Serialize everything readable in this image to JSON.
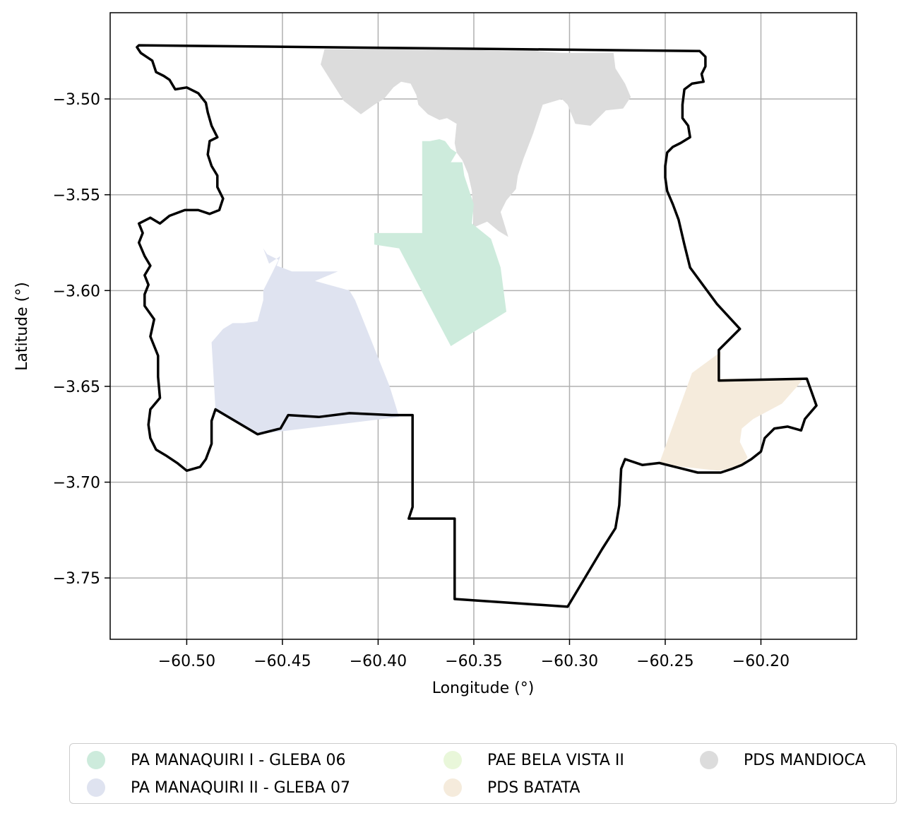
{
  "chart_data": {
    "type": "map",
    "xlabel": "Longitude (°)",
    "ylabel": "Latitude (°)",
    "xlim": [
      -60.54,
      -60.15
    ],
    "ylim": [
      -3.782,
      -3.455
    ],
    "x_ticks": [
      -60.5,
      -60.45,
      -60.4,
      -60.35,
      -60.3,
      -60.25,
      -60.2
    ],
    "x_tick_labels": [
      "−60.50",
      "−60.45",
      "−60.40",
      "−60.35",
      "−60.30",
      "−60.25",
      "−60.20"
    ],
    "y_ticks": [
      -3.5,
      -3.55,
      -3.6,
      -3.65,
      -3.7,
      -3.75
    ],
    "y_tick_labels": [
      "−3.50",
      "−3.55",
      "−3.60",
      "−3.65",
      "−3.70",
      "−3.75"
    ],
    "grid": true,
    "legend_placement": "bottom-center",
    "boundary": {
      "color": "#000000",
      "coords": [
        [
          -60.525,
          -3.472
        ],
        [
          -60.232,
          -3.475
        ],
        [
          -60.229,
          -3.478
        ],
        [
          -60.229,
          -3.483
        ],
        [
          -60.231,
          -3.487
        ],
        [
          -60.23,
          -3.491
        ],
        [
          -60.236,
          -3.492
        ],
        [
          -60.24,
          -3.495
        ],
        [
          -60.241,
          -3.503
        ],
        [
          -60.241,
          -3.51
        ],
        [
          -60.238,
          -3.514
        ],
        [
          -60.237,
          -3.52
        ],
        [
          -60.242,
          -3.523
        ],
        [
          -60.246,
          -3.525
        ],
        [
          -60.249,
          -3.528
        ],
        [
          -60.25,
          -3.535
        ],
        [
          -60.25,
          -3.541
        ],
        [
          -60.249,
          -3.548
        ],
        [
          -60.246,
          -3.555
        ],
        [
          -60.243,
          -3.563
        ],
        [
          -60.24,
          -3.576
        ],
        [
          -60.237,
          -3.588
        ],
        [
          -60.223,
          -3.607
        ],
        [
          -60.211,
          -3.62
        ],
        [
          -60.222,
          -3.631
        ],
        [
          -60.222,
          -3.647
        ],
        [
          -60.176,
          -3.646
        ],
        [
          -60.171,
          -3.66
        ],
        [
          -60.177,
          -3.667
        ],
        [
          -60.179,
          -3.673
        ],
        [
          -60.186,
          -3.671
        ],
        [
          -60.193,
          -3.672
        ],
        [
          -60.198,
          -3.677
        ],
        [
          -60.2,
          -3.684
        ],
        [
          -60.205,
          -3.688
        ],
        [
          -60.21,
          -3.691
        ],
        [
          -60.215,
          -3.693
        ],
        [
          -60.221,
          -3.695
        ],
        [
          -60.233,
          -3.695
        ],
        [
          -60.241,
          -3.693
        ],
        [
          -60.253,
          -3.69
        ],
        [
          -60.262,
          -3.691
        ],
        [
          -60.271,
          -3.688
        ],
        [
          -60.273,
          -3.693
        ],
        [
          -60.274,
          -3.712
        ],
        [
          -60.276,
          -3.724
        ],
        [
          -60.283,
          -3.735
        ],
        [
          -60.301,
          -3.765
        ],
        [
          -60.36,
          -3.761
        ],
        [
          -60.36,
          -3.719
        ],
        [
          -60.384,
          -3.719
        ],
        [
          -60.382,
          -3.713
        ],
        [
          -60.382,
          -3.665
        ],
        [
          -60.393,
          -3.665
        ],
        [
          -60.415,
          -3.664
        ],
        [
          -60.431,
          -3.666
        ],
        [
          -60.447,
          -3.665
        ],
        [
          -60.451,
          -3.672
        ],
        [
          -60.463,
          -3.675
        ],
        [
          -60.485,
          -3.662
        ],
        [
          -60.487,
          -3.668
        ],
        [
          -60.487,
          -3.68
        ],
        [
          -60.49,
          -3.688
        ],
        [
          -60.493,
          -3.692
        ],
        [
          -60.5,
          -3.694
        ],
        [
          -60.505,
          -3.69
        ],
        [
          -60.511,
          -3.686
        ],
        [
          -60.516,
          -3.683
        ],
        [
          -60.519,
          -3.677
        ],
        [
          -60.52,
          -3.67
        ],
        [
          -60.519,
          -3.662
        ],
        [
          -60.514,
          -3.656
        ],
        [
          -60.515,
          -3.645
        ],
        [
          -60.515,
          -3.634
        ],
        [
          -60.519,
          -3.624
        ],
        [
          -60.517,
          -3.615
        ],
        [
          -60.522,
          -3.608
        ],
        [
          -60.522,
          -3.602
        ],
        [
          -60.52,
          -3.597
        ],
        [
          -60.522,
          -3.592
        ],
        [
          -60.519,
          -3.587
        ],
        [
          -60.522,
          -3.582
        ],
        [
          -60.525,
          -3.575
        ],
        [
          -60.523,
          -3.57
        ],
        [
          -60.525,
          -3.565
        ],
        [
          -60.519,
          -3.562
        ],
        [
          -60.514,
          -3.565
        ],
        [
          -60.509,
          -3.561
        ],
        [
          -60.501,
          -3.558
        ],
        [
          -60.494,
          -3.558
        ],
        [
          -60.488,
          -3.56
        ],
        [
          -60.483,
          -3.558
        ],
        [
          -60.481,
          -3.552
        ],
        [
          -60.484,
          -3.546
        ],
        [
          -60.484,
          -3.54
        ],
        [
          -60.487,
          -3.535
        ],
        [
          -60.489,
          -3.529
        ],
        [
          -60.488,
          -3.522
        ],
        [
          -60.484,
          -3.52
        ],
        [
          -60.487,
          -3.514
        ],
        [
          -60.489,
          -3.507
        ],
        [
          -60.49,
          -3.502
        ],
        [
          -60.494,
          -3.497
        ],
        [
          -60.5,
          -3.494
        ],
        [
          -60.506,
          -3.495
        ],
        [
          -60.509,
          -3.49
        ],
        [
          -60.512,
          -3.488
        ],
        [
          -60.516,
          -3.486
        ],
        [
          -60.518,
          -3.48
        ],
        [
          -60.521,
          -3.478
        ],
        [
          -60.524,
          -3.476
        ],
        [
          -60.526,
          -3.473
        ]
      ]
    },
    "areas": [
      {
        "name": "PDS MANDIOCA",
        "color": "#dcdcdc",
        "coords": [
          [
            -60.428,
            -3.474
          ],
          [
            -60.364,
            -3.474
          ],
          [
            -60.359,
            -3.474
          ],
          [
            -60.335,
            -3.475
          ],
          [
            -60.318,
            -3.475
          ],
          [
            -60.304,
            -3.476
          ],
          [
            -60.277,
            -3.476
          ],
          [
            -60.276,
            -3.484
          ],
          [
            -60.271,
            -3.492
          ],
          [
            -60.268,
            -3.499
          ],
          [
            -60.272,
            -3.505
          ],
          [
            -60.281,
            -3.506
          ],
          [
            -60.289,
            -3.514
          ],
          [
            -60.297,
            -3.513
          ],
          [
            -60.301,
            -3.503
          ],
          [
            -60.304,
            -3.5
          ],
          [
            -60.314,
            -3.503
          ],
          [
            -60.319,
            -3.518
          ],
          [
            -60.324,
            -3.531
          ],
          [
            -60.327,
            -3.54
          ],
          [
            -60.328,
            -3.547
          ],
          [
            -60.333,
            -3.553
          ],
          [
            -60.336,
            -3.559
          ],
          [
            -60.332,
            -3.572
          ],
          [
            -60.337,
            -3.569
          ],
          [
            -60.343,
            -3.564
          ],
          [
            -60.35,
            -3.567
          ],
          [
            -60.351,
            -3.548
          ],
          [
            -60.353,
            -3.539
          ],
          [
            -60.356,
            -3.532
          ],
          [
            -60.359,
            -3.528
          ],
          [
            -60.36,
            -3.523
          ],
          [
            -60.359,
            -3.513
          ],
          [
            -60.364,
            -3.51
          ],
          [
            -60.368,
            -3.511
          ],
          [
            -60.374,
            -3.508
          ],
          [
            -60.379,
            -3.503
          ],
          [
            -60.38,
            -3.498
          ],
          [
            -60.383,
            -3.492
          ],
          [
            -60.388,
            -3.491
          ],
          [
            -60.392,
            -3.494
          ],
          [
            -60.397,
            -3.5
          ],
          [
            -60.402,
            -3.503
          ],
          [
            -60.409,
            -3.508
          ],
          [
            -60.418,
            -3.501
          ],
          [
            -60.425,
            -3.49
          ],
          [
            -60.43,
            -3.482
          ]
        ]
      },
      {
        "name": "PA MANAQUIRI I - GLEBA 06",
        "color": "#cdebdc",
        "coords": [
          [
            -60.377,
            -3.522
          ],
          [
            -60.373,
            -3.522
          ],
          [
            -60.368,
            -3.521
          ],
          [
            -60.365,
            -3.522
          ],
          [
            -60.362,
            -3.526
          ],
          [
            -60.359,
            -3.528
          ],
          [
            -60.362,
            -3.533
          ],
          [
            -60.356,
            -3.533
          ],
          [
            -60.355,
            -3.54
          ],
          [
            -60.35,
            -3.555
          ],
          [
            -60.351,
            -3.565
          ],
          [
            -60.341,
            -3.573
          ],
          [
            -60.336,
            -3.588
          ],
          [
            -60.333,
            -3.611
          ],
          [
            -60.362,
            -3.629
          ],
          [
            -60.389,
            -3.578
          ],
          [
            -60.402,
            -3.576
          ],
          [
            -60.402,
            -3.57
          ],
          [
            -60.377,
            -3.57
          ],
          [
            -60.377,
            -3.548
          ]
        ]
      },
      {
        "name": "PA MANAQUIRI II - GLEBA 07",
        "color": "#dfe3f0",
        "coords": [
          [
            -60.46,
            -3.578
          ],
          [
            -60.457,
            -3.586
          ],
          [
            -60.451,
            -3.582
          ],
          [
            -60.453,
            -3.587
          ],
          [
            -60.445,
            -3.59
          ],
          [
            -60.421,
            -3.59
          ],
          [
            -60.433,
            -3.595
          ],
          [
            -60.415,
            -3.6
          ],
          [
            -60.412,
            -3.605
          ],
          [
            -60.394,
            -3.65
          ],
          [
            -60.389,
            -3.666
          ],
          [
            -60.463,
            -3.675
          ],
          [
            -60.485,
            -3.662
          ],
          [
            -60.487,
            -3.627
          ],
          [
            -60.481,
            -3.62
          ],
          [
            -60.476,
            -3.617
          ],
          [
            -60.47,
            -3.617
          ],
          [
            -60.463,
            -3.616
          ],
          [
            -60.46,
            -3.605
          ],
          [
            -60.46,
            -3.6
          ],
          [
            -60.455,
            -3.59
          ],
          [
            -60.452,
            -3.584
          ],
          [
            -60.458,
            -3.581
          ]
        ]
      },
      {
        "name": "PDS BATATA",
        "color": "#f5ebdc",
        "coords": [
          [
            -60.221,
            -3.632
          ],
          [
            -60.236,
            -3.643
          ],
          [
            -60.253,
            -3.69
          ],
          [
            -60.241,
            -3.692
          ],
          [
            -60.222,
            -3.694
          ],
          [
            -60.21,
            -3.692
          ],
          [
            -60.207,
            -3.687
          ],
          [
            -60.211,
            -3.679
          ],
          [
            -60.21,
            -3.672
          ],
          [
            -60.204,
            -3.667
          ],
          [
            -60.189,
            -3.659
          ],
          [
            -60.181,
            -3.65
          ],
          [
            -60.178,
            -3.646
          ],
          [
            -60.222,
            -3.646
          ]
        ]
      }
    ]
  },
  "legend": {
    "items": [
      {
        "label": "PA MANAQUIRI I - GLEBA 06",
        "color": "#cdebdc"
      },
      {
        "label": "PAE BELA VISTA II",
        "color": "#e9f7da"
      },
      {
        "label": "PDS MANDIOCA",
        "color": "#dcdcdc"
      },
      {
        "label": "PA MANAQUIRI II - GLEBA 07",
        "color": "#dfe3f0"
      },
      {
        "label": "PDS BATATA",
        "color": "#f5ebdc"
      }
    ]
  }
}
